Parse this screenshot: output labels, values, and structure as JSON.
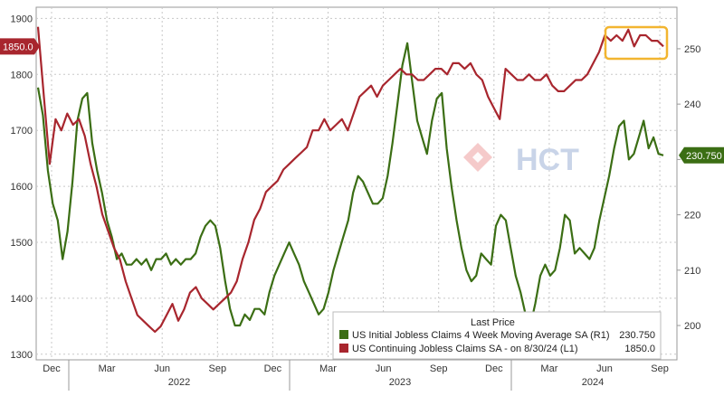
{
  "chart_data": {
    "type": "line",
    "title": "",
    "x_labels": [
      "Dec",
      "Mar",
      "Jun",
      "Sep",
      "Dec",
      "Mar",
      "Jun",
      "Sep",
      "Dec",
      "Mar",
      "Jun",
      "Sep"
    ],
    "year_labels": [
      "2022",
      "2023",
      "2024"
    ],
    "left_axis": {
      "ylim": [
        1290,
        1920
      ],
      "ticks": [
        1300,
        1400,
        1500,
        1600,
        1700,
        1800,
        1900
      ]
    },
    "right_axis": {
      "ylim": [
        193.8,
        257.5
      ],
      "ticks": [
        200,
        210,
        220,
        230,
        240,
        250
      ]
    },
    "legend_title": "Last Price",
    "series": [
      {
        "name": "US Initial Jobless Claims 4 Week Moving Average SA",
        "axis_tag": "(R1)",
        "last_value": "230.750",
        "color": "#3b6e14",
        "axis": "right",
        "values": [
          243,
          238,
          228,
          222,
          219,
          212,
          217,
          226,
          237,
          241,
          242,
          233,
          228,
          224,
          219,
          216,
          212,
          213,
          211,
          211,
          212,
          211,
          212,
          210,
          212,
          212,
          213,
          211,
          212,
          211,
          212,
          212,
          213,
          216,
          218,
          219,
          218,
          214,
          208,
          203,
          200,
          200,
          202,
          201,
          203,
          203,
          202,
          206,
          209,
          211,
          213,
          215,
          213,
          211,
          208,
          206,
          204,
          202,
          203,
          206,
          210,
          213,
          216,
          219,
          224,
          227,
          226,
          224,
          222,
          222,
          223,
          227,
          233,
          240,
          247,
          251,
          244,
          237,
          234,
          231,
          237,
          241,
          242,
          232,
          225,
          219,
          214,
          210,
          208,
          209,
          213,
          212,
          211,
          218,
          220,
          219,
          214,
          209,
          206,
          202,
          200,
          204,
          209,
          211,
          209,
          210,
          214,
          220,
          219,
          213,
          214,
          213,
          212,
          214,
          219,
          223,
          227,
          232,
          236,
          237,
          230,
          231,
          234,
          237,
          232,
          234,
          231,
          230.75
        ]
      },
      {
        "name": "US Continuing Jobless Claims SA",
        "date_note": "on 8/30/24",
        "axis_tag": "(L1)",
        "last_value": "1850.0",
        "color": "#a8262e",
        "axis": "left",
        "values": [
          1885,
          1760,
          1640,
          1720,
          1700,
          1730,
          1710,
          1720,
          1690,
          1640,
          1600,
          1550,
          1520,
          1490,
          1470,
          1430,
          1400,
          1370,
          1360,
          1350,
          1340,
          1350,
          1370,
          1390,
          1360,
          1380,
          1410,
          1420,
          1400,
          1390,
          1380,
          1390,
          1400,
          1410,
          1430,
          1470,
          1500,
          1540,
          1560,
          1590,
          1600,
          1610,
          1630,
          1640,
          1650,
          1660,
          1670,
          1700,
          1700,
          1720,
          1700,
          1710,
          1720,
          1700,
          1730,
          1760,
          1770,
          1780,
          1760,
          1780,
          1790,
          1800,
          1810,
          1800,
          1800,
          1790,
          1790,
          1800,
          1810,
          1810,
          1800,
          1820,
          1820,
          1810,
          1820,
          1800,
          1790,
          1760,
          1740,
          1720,
          1810,
          1800,
          1790,
          1790,
          1800,
          1790,
          1790,
          1800,
          1780,
          1770,
          1770,
          1780,
          1790,
          1790,
          1800,
          1820,
          1840,
          1870,
          1860,
          1870,
          1860,
          1880,
          1850,
          1870,
          1870,
          1860,
          1860,
          1850
        ]
      }
    ],
    "last_price_badges": {
      "left": "1850.0",
      "right": "230.750"
    },
    "annotation": "highlight box around recent continuing claims peak"
  },
  "watermark": "HCT"
}
